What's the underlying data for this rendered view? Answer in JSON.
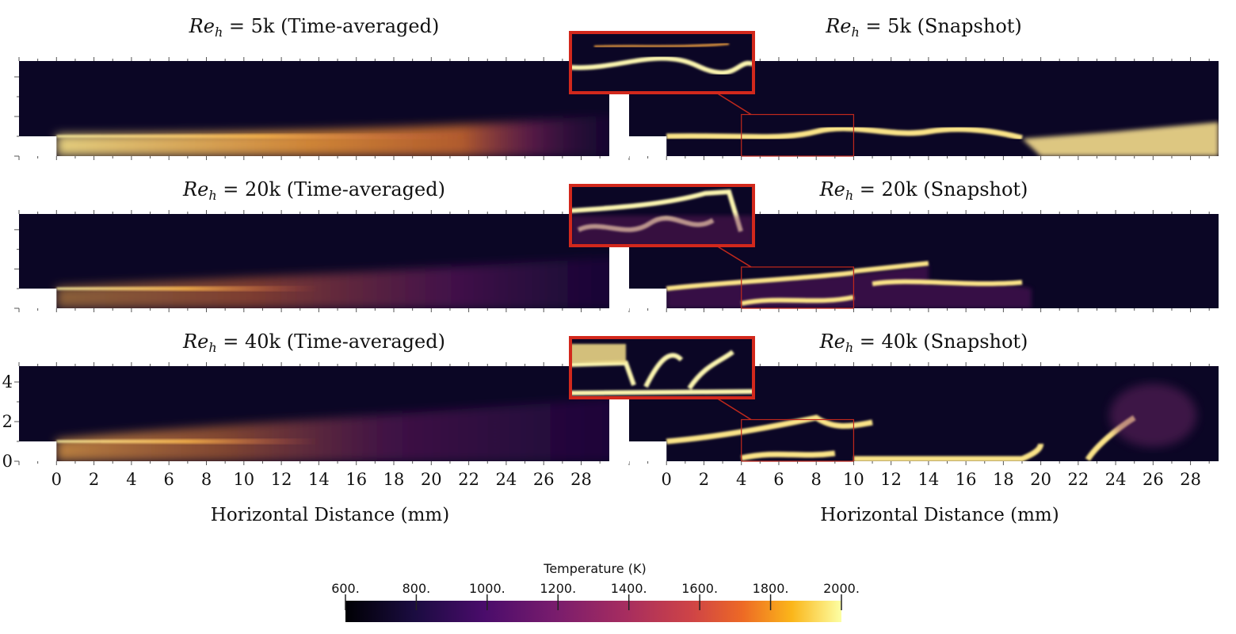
{
  "chart_data": {
    "type": "heatmap",
    "colormap": "inferno",
    "colorbar": {
      "title": "Temperature (K)",
      "ticks": [
        "600.",
        "800.",
        "1000.",
        "1200.",
        "1400.",
        "1600.",
        "1800.",
        "2000."
      ],
      "range": [
        600,
        2000
      ]
    },
    "xlabel": "Horizontal Distance (mm)",
    "xticks": [
      "0",
      "2",
      "4",
      "6",
      "8",
      "10",
      "12",
      "14",
      "16",
      "18",
      "20",
      "22",
      "24",
      "26",
      "28"
    ],
    "xlim": [
      -2,
      29.5
    ],
    "yticks": [
      "0",
      "2",
      "4"
    ],
    "ylim": [
      0,
      4.8
    ],
    "panels": [
      {
        "id": "re5-avg",
        "title_math": "Re",
        "title_sub": "h",
        "title_eq": " = 5k",
        "title_suffix": " (Time-averaged)",
        "kind": "averaged",
        "re_k": 5
      },
      {
        "id": "re5-snap",
        "title_math": "Re",
        "title_sub": "h",
        "title_eq": " = 5k",
        "title_suffix": " (Snapshot)",
        "kind": "snapshot",
        "re_k": 5,
        "zoom_window_mm": [
          4,
          10
        ]
      },
      {
        "id": "re20-avg",
        "title_math": "Re",
        "title_sub": "h",
        "title_eq": " = 20k",
        "title_suffix": " (Time-averaged)",
        "kind": "averaged",
        "re_k": 20
      },
      {
        "id": "re20-snap",
        "title_math": "Re",
        "title_sub": "h",
        "title_eq": " = 20k",
        "title_suffix": " (Snapshot)",
        "kind": "snapshot",
        "re_k": 20,
        "zoom_window_mm": [
          4,
          10
        ]
      },
      {
        "id": "re40-avg",
        "title_math": "Re",
        "title_sub": "h",
        "title_eq": " = 40k",
        "title_suffix": " (Time-averaged)",
        "kind": "averaged",
        "re_k": 40
      },
      {
        "id": "re40-snap",
        "title_math": "Re",
        "title_sub": "h",
        "title_eq": " = 40k",
        "title_suffix": " (Snapshot)",
        "kind": "snapshot",
        "re_k": 40,
        "zoom_window_mm": [
          4,
          10
        ]
      }
    ]
  }
}
